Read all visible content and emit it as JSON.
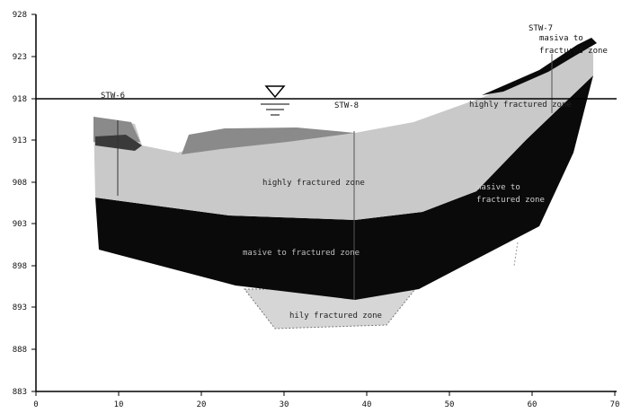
{
  "section": {
    "y_ticks": [
      "928",
      "923",
      "918",
      "913",
      "908",
      "903",
      "898",
      "893",
      "888",
      "883"
    ],
    "x_ticks": [
      "0",
      "10",
      "20",
      "30",
      "40",
      "50",
      "60",
      "70"
    ],
    "boreholes": [
      "STW-6",
      "STW-8",
      "STW-7"
    ],
    "zones": {
      "highly_fractured_upper": "highly fractured zone",
      "highly_fractured_right": "highly fractured zone",
      "massive_to_fractured_center": "masive to fractured zone",
      "massive_to_fractured_right_line1": "masive to",
      "massive_to_fractured_right_line2": "fractured zone",
      "massive_to_fractured_top_line1": "masiva to",
      "massive_to_fractured_top_line2": "fractured zone",
      "hily_fractured_lower": "hily fractured zone"
    },
    "colors": {
      "highly_fractured": "#c9c9c9",
      "massive": "#0a0a0a",
      "overburden": "#8a8a8a",
      "lower_zone": "#d6d6d6",
      "water_line": "#000000"
    }
  }
}
